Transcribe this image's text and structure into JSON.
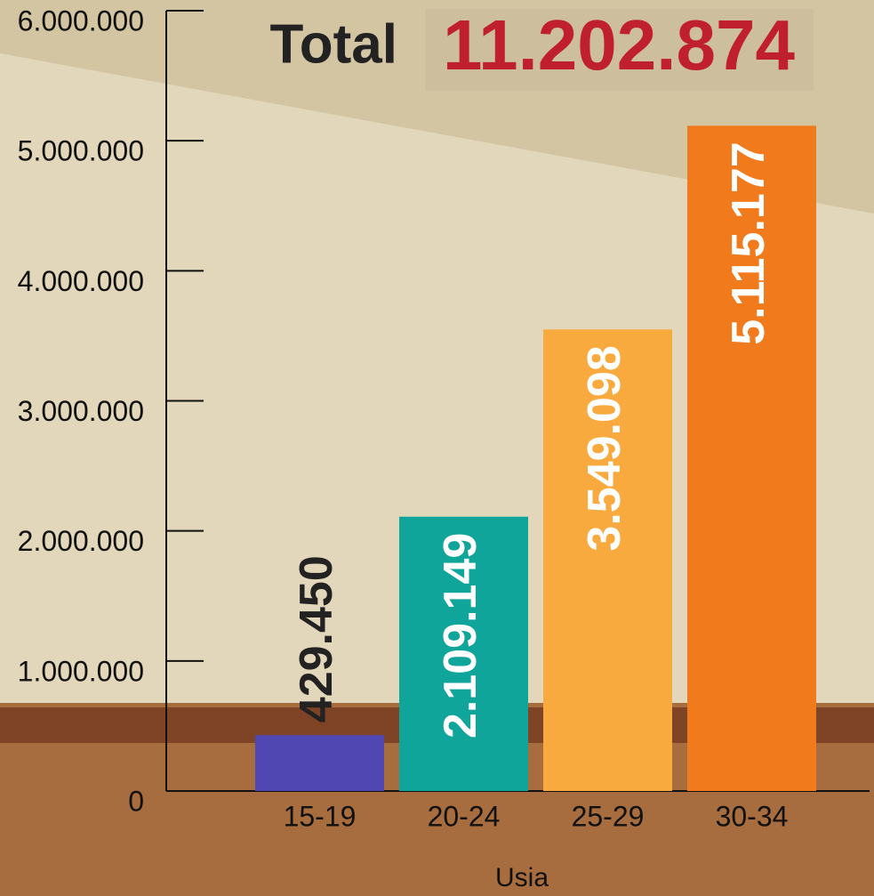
{
  "chart_data": {
    "type": "bar",
    "title": "Total",
    "subtitle": "11.202.874",
    "categories": [
      "15-19",
      "20-24",
      "25-29",
      "30-34"
    ],
    "values": [
      429450,
      2109149,
      3549098,
      5115177
    ],
    "value_labels": [
      "429.450",
      "2.109.149",
      "3.549.098",
      "5.115.177"
    ],
    "colors": [
      "#5047b3",
      "#0fa59b",
      "#f8aa3e",
      "#f07a1c"
    ],
    "ylim": [
      0,
      6000000
    ],
    "yticks": [
      0,
      {
        "value": 1000000,
        "label": "1.000.000"
      },
      {
        "value": 2000000,
        "label": "2.000.000"
      },
      {
        "value": 3000000,
        "label": "3.000.000"
      },
      {
        "value": 4000000,
        "label": "4.000.000"
      },
      {
        "value": 5000000,
        "label": "5.000.000"
      },
      {
        "value": 6000000,
        "label": "6.000.000"
      }
    ],
    "xlabel": "Usia",
    "grid": false
  }
}
